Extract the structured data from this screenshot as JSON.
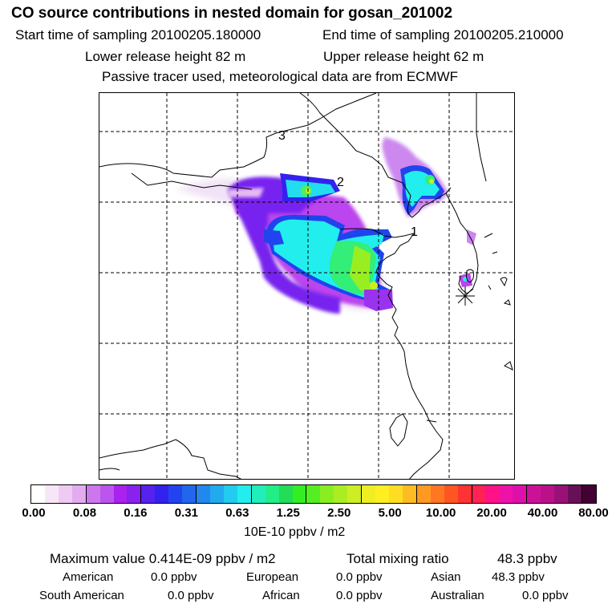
{
  "header": {
    "title": "CO  source contributions in nested domain for gosan_201002",
    "start_label": "Start time of sampling 20100205.180000",
    "end_label": "End time of sampling 20100205.210000",
    "lower_label": "Lower release height   82 m",
    "upper_label": "Upper release height   62 m",
    "tracer_note": "Passive tracer used, meteorological data are from ECMWF"
  },
  "map": {
    "markers": [
      "1",
      "2",
      "3"
    ],
    "site_icon": "asterisk-site-icon"
  },
  "colorbar": {
    "ticks": [
      "0.00",
      "0.08",
      "0.16",
      "0.31",
      "0.63",
      "1.25",
      "2.50",
      "5.00",
      "10.00",
      "20.00",
      "40.00",
      "80.00"
    ],
    "units": "10E-10 ppbv / m2",
    "colors": [
      "#ffffff",
      "#f7e6f7",
      "#eecbf3",
      "#e3acef",
      "#cc77ee",
      "#bb55ee",
      "#aa22ee",
      "#8822ee",
      "#5522ee",
      "#3322ee",
      "#2244ee",
      "#2266ee",
      "#2288ee",
      "#22aaee",
      "#22ccee",
      "#22eeee",
      "#22eebb",
      "#22ee88",
      "#22dd55",
      "#33ee22",
      "#55ee22",
      "#88ee22",
      "#aaee22",
      "#ccee22",
      "#eeee22",
      "#ffee22",
      "#ffdd22",
      "#ffbb22",
      "#ff9922",
      "#ff7722",
      "#ff5522",
      "#ff3333",
      "#ff2255",
      "#ff1188",
      "#ee11aa",
      "#dd11aa",
      "#cc1199",
      "#bb1188",
      "#991177",
      "#661155",
      "#440033"
    ],
    "major_after": [
      3,
      7,
      11,
      15,
      19,
      23,
      27,
      31,
      35,
      39
    ]
  },
  "summary": {
    "max_label": "Maximum value  0.414E-09 ppbv / m2",
    "total_label": "Total mixing ratio",
    "total_value": "48.3 ppbv",
    "american_label": "American",
    "american_value": "0.0 ppbv",
    "european_label": "European",
    "european_value": "0.0 ppbv",
    "asian_label": "Asian",
    "asian_value": "48.3 ppbv",
    "south_american_label": "South American",
    "south_american_value": "0.0 ppbv",
    "african_label": "African",
    "african_value": "0.0 ppbv",
    "australian_label": "Australian",
    "australian_value": "0.0 ppbv"
  }
}
